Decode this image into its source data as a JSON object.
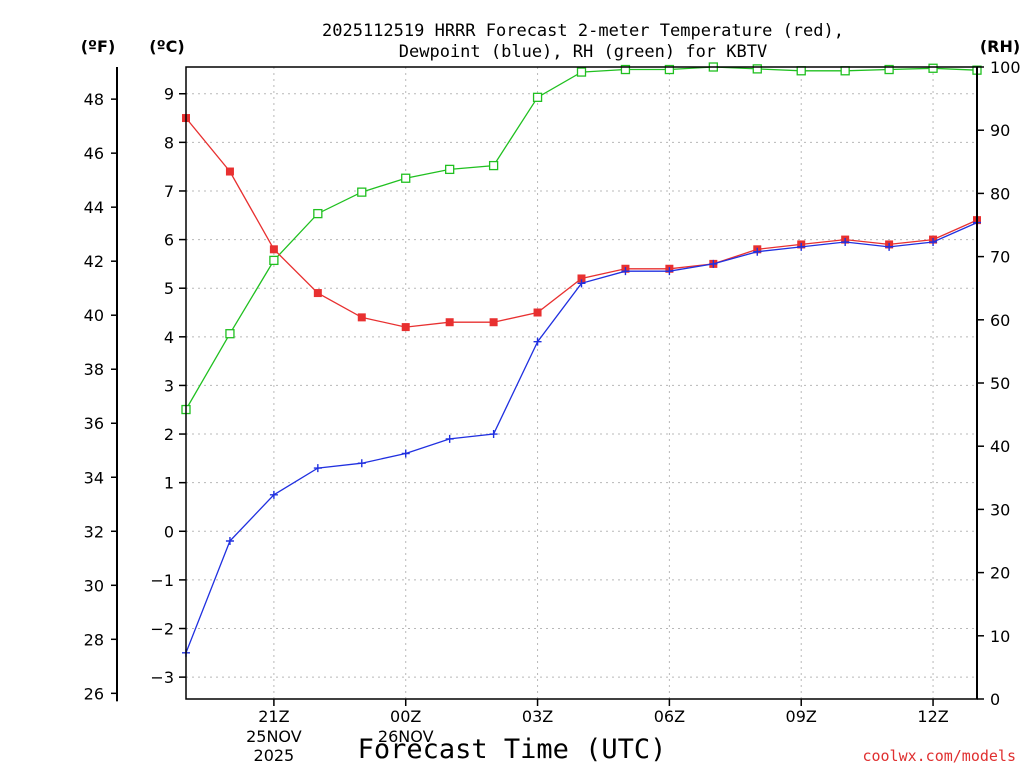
{
  "chart_data": {
    "type": "line",
    "title_line1": "2025112519 HRRR Forecast 2-meter Temperature (red),",
    "title_line2": "Dewpoint (blue), RH (green) for KBTV",
    "xlabel": "Forecast Time (UTC)",
    "left_outer_unit": "(ºF)",
    "left_inner_unit": "(ºC)",
    "right_unit": "(RH)",
    "credit": "coolwx.com/models",
    "x_hours_utc": [
      19,
      20,
      21,
      22,
      23,
      24,
      25,
      26,
      27,
      28,
      29,
      30,
      31,
      32,
      33,
      34,
      35,
      36,
      37
    ],
    "x_ticks": [
      {
        "hour": 21,
        "label": "21Z",
        "sub1": "25NOV",
        "sub2": "2025"
      },
      {
        "hour": 24,
        "label": "00Z",
        "sub1": "26NOV",
        "sub2": ""
      },
      {
        "hour": 27,
        "label": "03Z",
        "sub1": "",
        "sub2": ""
      },
      {
        "hour": 30,
        "label": "06Z",
        "sub1": "",
        "sub2": ""
      },
      {
        "hour": 33,
        "label": "09Z",
        "sub1": "",
        "sub2": ""
      },
      {
        "hour": 36,
        "label": "12Z",
        "sub1": "",
        "sub2": ""
      }
    ],
    "celsius_ticks": [
      "−3",
      "−2",
      "−1",
      "0",
      "1",
      "2",
      "3",
      "4",
      "5",
      "6",
      "7",
      "8",
      "9"
    ],
    "fahrenheit_ticks": [
      "26",
      "28",
      "30",
      "32",
      "34",
      "36",
      "38",
      "40",
      "42",
      "44",
      "46",
      "48"
    ],
    "rh_ticks": [
      "0",
      "10",
      "20",
      "30",
      "40",
      "50",
      "60",
      "70",
      "80",
      "90",
      "100"
    ],
    "celsius_range": [
      -3.45,
      9.55
    ],
    "rh_range": [
      0,
      100
    ],
    "grid": true,
    "series": [
      {
        "name": "Temperature",
        "unit": "C",
        "color": "#e83030",
        "marker": "filled-square",
        "values": [
          8.5,
          7.4,
          5.8,
          4.9,
          4.4,
          4.2,
          4.3,
          4.3,
          4.5,
          5.2,
          5.4,
          5.4,
          5.5,
          5.8,
          5.9,
          6.0,
          5.9,
          6.0,
          6.4
        ]
      },
      {
        "name": "Dewpoint",
        "unit": "C",
        "color": "#2030e0",
        "marker": "plus",
        "values": [
          -2.5,
          -0.2,
          0.75,
          1.3,
          1.4,
          1.6,
          1.9,
          2.0,
          3.9,
          5.1,
          5.35,
          5.35,
          5.5,
          5.75,
          5.85,
          5.95,
          5.85,
          5.95,
          6.35
        ]
      },
      {
        "name": "RH",
        "unit": "%",
        "color": "#20c020",
        "marker": "open-square",
        "values": [
          45.8,
          57.8,
          69.4,
          76.8,
          80.2,
          82.4,
          83.8,
          84.4,
          95.2,
          99.2,
          99.6,
          99.6,
          100.0,
          99.7,
          99.4,
          99.4,
          99.6,
          99.8,
          99.5
        ]
      }
    ]
  }
}
